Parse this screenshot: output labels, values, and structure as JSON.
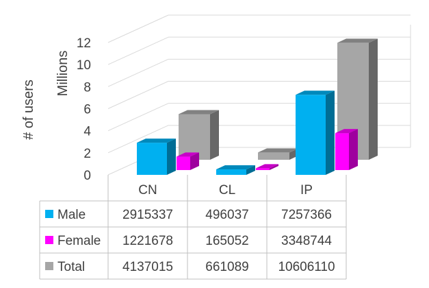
{
  "chart_data": {
    "type": "bar",
    "categories": [
      "CN",
      "CL",
      "IP"
    ],
    "series": [
      {
        "name": "Male",
        "values": [
          2915337,
          496037,
          7257366
        ],
        "color": "#00B0F0"
      },
      {
        "name": "Female",
        "values": [
          1221678,
          165052,
          3348744
        ],
        "color": "#FF00FF"
      },
      {
        "name": "Total",
        "values": [
          4137015,
          661089,
          10606110
        ],
        "color": "#A6A6A6"
      }
    ],
    "ylabel": "# of users",
    "yunit": "Millions",
    "ylim": [
      0,
      12
    ],
    "yticks": [
      "0",
      "2",
      "4",
      "6",
      "8",
      "10",
      "12"
    ],
    "table": true,
    "grid": true,
    "style": "3d-clustered-column"
  }
}
